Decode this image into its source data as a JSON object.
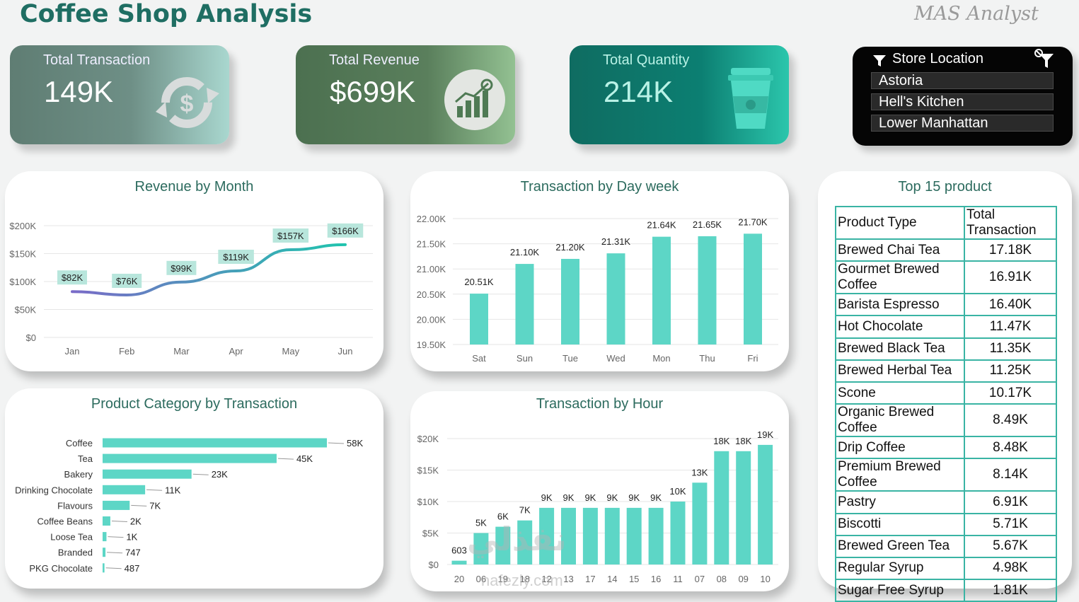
{
  "title": "Coffee Shop Analysis",
  "signature": "MAS Analyst",
  "kpis": {
    "transactions": {
      "label": "Total Transaction",
      "value": "149K"
    },
    "revenue": {
      "label": "Total Revenue",
      "value": "$699K"
    },
    "quantity": {
      "label": "Total Quantity",
      "value": "214K"
    }
  },
  "slicer": {
    "title": "Store Location",
    "items": [
      "Astoria",
      "Hell's Kitchen",
      "Lower Manhattan"
    ]
  },
  "cards": {
    "revenue_month": "Revenue by Month",
    "day_week": "Transaction by Day week",
    "category": "Product Category by  Transaction",
    "hour": "Transaction by Hour",
    "top15": "Top 15 product"
  },
  "top15": {
    "headers": [
      "Product Type",
      "Total Transaction"
    ],
    "rows": [
      [
        "Brewed Chai Tea",
        "17.18K"
      ],
      [
        "Gourmet Brewed Coffee",
        "16.91K"
      ],
      [
        "Barista Espresso",
        "16.40K"
      ],
      [
        "Hot Chocolate",
        "11.47K"
      ],
      [
        "Brewed Black Tea",
        "11.35K"
      ],
      [
        "Brewed Herbal Tea",
        "11.25K"
      ],
      [
        "Scone",
        "10.17K"
      ],
      [
        "Organic Brewed Coffee",
        "8.49K"
      ],
      [
        "Drip Coffee",
        "8.48K"
      ],
      [
        "Premium Brewed Coffee",
        "8.14K"
      ],
      [
        "Pastry",
        "6.91K"
      ],
      [
        "Biscotti",
        "5.71K"
      ],
      [
        "Brewed Green Tea",
        "5.67K"
      ],
      [
        "Regular Syrup",
        "4.98K"
      ],
      [
        "Sugar Free Syrup",
        "1.81K"
      ]
    ]
  },
  "watermark": {
    "text": "نفذلي",
    "sub": "nafezly.com"
  },
  "colors": {
    "accent": "#1f6e63",
    "bar": "#5dd6c6",
    "table_border": "#3ab4a4",
    "line_start": "#7a6bc8",
    "line_end": "#20c4ae"
  },
  "chart_data": [
    {
      "id": "revenue_month",
      "type": "line",
      "title": "Revenue by Month",
      "categories": [
        "Jan",
        "Feb",
        "Mar",
        "Apr",
        "May",
        "Jun"
      ],
      "values": [
        82000,
        76000,
        99000,
        119000,
        157000,
        166000
      ],
      "data_labels": [
        "$82K",
        "$76K",
        "$99K",
        "$119K",
        "$157K",
        "$166K"
      ],
      "yticks": [
        "$0",
        "$50K",
        "$100K",
        "$150K",
        "$200K"
      ],
      "ylim": [
        0,
        200000
      ],
      "grid": true
    },
    {
      "id": "day_week",
      "type": "bar",
      "title": "Transaction by Day week",
      "categories": [
        "Sat",
        "Sun",
        "Tue",
        "Wed",
        "Mon",
        "Thu",
        "Fri"
      ],
      "values": [
        20510,
        21100,
        21200,
        21310,
        21640,
        21650,
        21700
      ],
      "data_labels": [
        "20.51K",
        "21.10K",
        "21.20K",
        "21.31K",
        "21.64K",
        "21.65K",
        "21.70K"
      ],
      "yticks": [
        "19.50K",
        "20.00K",
        "20.50K",
        "21.00K",
        "21.50K",
        "22.00K"
      ],
      "ylim": [
        19500,
        22000
      ],
      "grid": true
    },
    {
      "id": "category",
      "type": "bar",
      "orientation": "horizontal",
      "title": "Product Category by  Transaction",
      "categories": [
        "Coffee",
        "Tea",
        "Bakery",
        "Drinking Chocolate",
        "Flavours",
        "Coffee Beans",
        "Loose Tea",
        "Branded",
        "PKG Chocolate"
      ],
      "values": [
        58000,
        45000,
        23000,
        11000,
        7000,
        2000,
        1000,
        747,
        487
      ],
      "data_labels": [
        "58K",
        "45K",
        "23K",
        "11K",
        "7K",
        "2K",
        "1K",
        "747",
        "487"
      ]
    },
    {
      "id": "hour",
      "type": "bar",
      "title": "Transaction by Hour",
      "categories": [
        "20",
        "06",
        "19",
        "18",
        "12",
        "13",
        "17",
        "14",
        "15",
        "16",
        "11",
        "07",
        "08",
        "09",
        "10"
      ],
      "values": [
        603,
        5000,
        6000,
        7000,
        9000,
        9000,
        9000,
        9000,
        9000,
        9000,
        10000,
        13000,
        18000,
        18000,
        19000
      ],
      "data_labels": [
        "603",
        "5K",
        "6K",
        "7K",
        "9K",
        "9K",
        "9K",
        "9K",
        "9K",
        "9K",
        "10K",
        "13K",
        "18K",
        "18K",
        "19K"
      ],
      "yticks": [
        "$0",
        "$5K",
        "$10K",
        "$15K",
        "$20K"
      ],
      "ylim": [
        0,
        20000
      ],
      "grid": true
    }
  ]
}
